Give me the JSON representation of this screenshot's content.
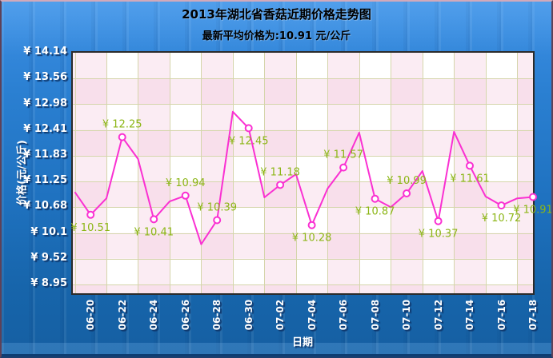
{
  "chart_data": {
    "type": "line",
    "title": "2013年湖北省香菇近期价格走势图",
    "subtitle": "最新平均价格为:10.91 元/公斤",
    "xlabel": "日期",
    "ylabel": "价格(元/公斤)",
    "currency_prefix": "¥",
    "grid": true,
    "legend_position": "none",
    "y_axis_range": {
      "max": 14.14,
      "min_tick": 8.95
    },
    "y_ticks": [
      {
        "label": "¥ 14.14",
        "value": 14.14
      },
      {
        "label": "¥ 13.56",
        "value": 13.56
      },
      {
        "label": "¥ 12.98",
        "value": 12.98
      },
      {
        "label": "¥ 12.41",
        "value": 12.41
      },
      {
        "label": "¥ 11.83",
        "value": 11.83
      },
      {
        "label": "¥ 11.25",
        "value": 11.25
      },
      {
        "label": "¥ 10.68",
        "value": 10.68
      },
      {
        "label": "¥ 10.1",
        "value": 10.1
      },
      {
        "label": "¥ 9.52",
        "value": 9.52
      },
      {
        "label": "¥ 8.95",
        "value": 8.95
      }
    ],
    "x_ticks": [
      "06-20",
      "06-22",
      "06-24",
      "06-26",
      "06-28",
      "06-30",
      "07-02",
      "07-04",
      "07-06",
      "07-08",
      "07-10",
      "07-12",
      "07-14",
      "07-16",
      "07-18"
    ],
    "points": [
      {
        "date": "06-19",
        "value": 11.02,
        "label": null
      },
      {
        "date": "06-20",
        "value": 10.51,
        "label": "¥ 10.51",
        "label_pos": "below"
      },
      {
        "date": "06-21",
        "value": 10.88,
        "label": null
      },
      {
        "date": "06-22",
        "value": 12.25,
        "label": "¥ 12.25",
        "label_pos": "above"
      },
      {
        "date": "06-23",
        "value": 11.76,
        "label": null
      },
      {
        "date": "06-24",
        "value": 10.41,
        "label": "¥ 10.41",
        "label_pos": "below"
      },
      {
        "date": "06-25",
        "value": 10.81,
        "label": null
      },
      {
        "date": "06-26",
        "value": 10.94,
        "label": "¥ 10.94",
        "label_pos": "above"
      },
      {
        "date": "06-27",
        "value": 9.85,
        "label": null
      },
      {
        "date": "06-28",
        "value": 10.39,
        "label": "¥ 10.39",
        "label_pos": "above"
      },
      {
        "date": "06-29",
        "value": 12.82,
        "label": null
      },
      {
        "date": "06-30",
        "value": 12.45,
        "label": "¥ 12.45",
        "label_pos": "below"
      },
      {
        "date": "07-01",
        "value": 10.9,
        "label": null
      },
      {
        "date": "07-02",
        "value": 11.18,
        "label": "¥ 11.18",
        "label_pos": "above"
      },
      {
        "date": "07-03",
        "value": 11.42,
        "label": null
      },
      {
        "date": "07-04",
        "value": 10.28,
        "label": "¥ 10.28",
        "label_pos": "below"
      },
      {
        "date": "07-05",
        "value": 11.1,
        "label": null
      },
      {
        "date": "07-06",
        "value": 11.57,
        "label": "¥ 11.57",
        "label_pos": "above"
      },
      {
        "date": "07-07",
        "value": 12.35,
        "label": null
      },
      {
        "date": "07-08",
        "value": 10.87,
        "label": "¥ 10.87",
        "label_pos": "below"
      },
      {
        "date": "07-09",
        "value": 10.68,
        "label": null
      },
      {
        "date": "07-10",
        "value": 10.99,
        "label": "¥ 10.99",
        "label_pos": "above"
      },
      {
        "date": "07-11",
        "value": 11.49,
        "label": null
      },
      {
        "date": "07-12",
        "value": 10.37,
        "label": "¥ 10.37",
        "label_pos": "below"
      },
      {
        "date": "07-13",
        "value": 12.37,
        "label": null
      },
      {
        "date": "07-14",
        "value": 11.61,
        "label": "¥ 11.61",
        "label_pos": "below"
      },
      {
        "date": "07-15",
        "value": 10.92,
        "label": null
      },
      {
        "date": "07-16",
        "value": 10.72,
        "label": "¥ 10.72",
        "label_pos": "below"
      },
      {
        "date": "07-17",
        "value": 10.88,
        "label": null
      },
      {
        "date": "07-18",
        "value": 10.91,
        "label": "¥ 10.91",
        "label_pos": "below"
      }
    ],
    "colors": {
      "line": "#fa30d2",
      "marker_fill": "#ffffff",
      "value_label": "#8cb616",
      "grid": "#d5d5ab",
      "plot_bg": "#ffffff",
      "plot_tint": "#f2c3da",
      "plot_border": "#2b2b2b",
      "background_top": "#3e90e6",
      "background_bottom": "#155fa2",
      "axis_text": "#ffffff",
      "axis_text_shadow": "#10396e",
      "title_text": "#000000"
    }
  }
}
